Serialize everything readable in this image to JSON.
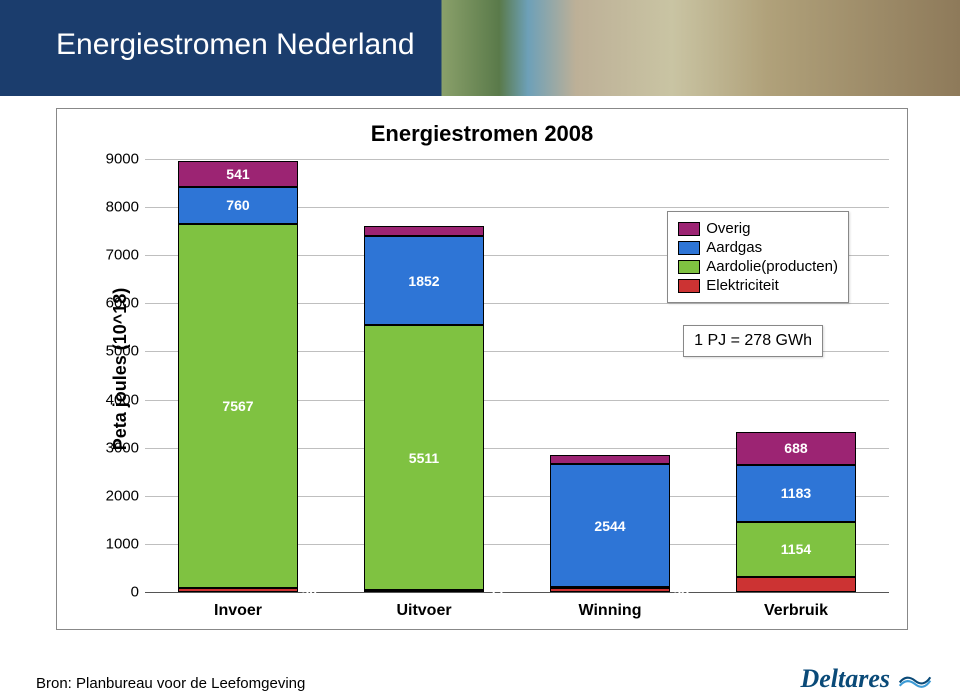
{
  "header": {
    "title": "Energiestromen Nederland"
  },
  "chart": {
    "type": "stacked-bar",
    "title": "Energiestromen 2008",
    "y_axis_label": "Peta joules (10^18)",
    "ylim": [
      0,
      9000
    ],
    "ytick_step": 1000,
    "yticks": [
      "0",
      "1000",
      "2000",
      "3000",
      "4000",
      "5000",
      "6000",
      "7000",
      "8000",
      "9000"
    ],
    "categories": [
      "Invoer",
      "Uitvoer",
      "Winning",
      "Verbruik"
    ],
    "colors": {
      "overig": "#9c2473",
      "aardgas": "#2e75d6",
      "aardolie": "#7fc241",
      "elek": "#cc3333",
      "grid": "#bfbfbf",
      "axis": "#555555"
    },
    "series_order": [
      "elek",
      "aardolie",
      "aardgas",
      "overig"
    ],
    "series": {
      "Invoer": {
        "elek": 90,
        "aardolie": 7567,
        "aardgas": 760,
        "overig": 541
      },
      "Uitvoer": {
        "elek": 33,
        "aardolie": 5511,
        "aardgas": 1852,
        "overig": 203
      },
      "Winning": {
        "elek": 93,
        "aardolie": 16,
        "aardgas": 2544,
        "overig": 189
      },
      "Verbruik": {
        "elek": 307,
        "aardolie": 1154,
        "aardgas": 1183,
        "overig": 688
      }
    },
    "legend": {
      "items": [
        {
          "key": "overig",
          "label": "Overig"
        },
        {
          "key": "aardgas",
          "label": "Aardgas"
        },
        {
          "key": "aardolie",
          "label": "Aardolie(producten)"
        },
        {
          "key": "elek",
          "label": "Elektriciteit"
        }
      ]
    },
    "annotation": "1 PJ = 278 GWh",
    "bar_width_pct": 16
  },
  "source": "Bron: Planbureau voor de Leefomgeving",
  "logo": {
    "text": "Deltares"
  }
}
